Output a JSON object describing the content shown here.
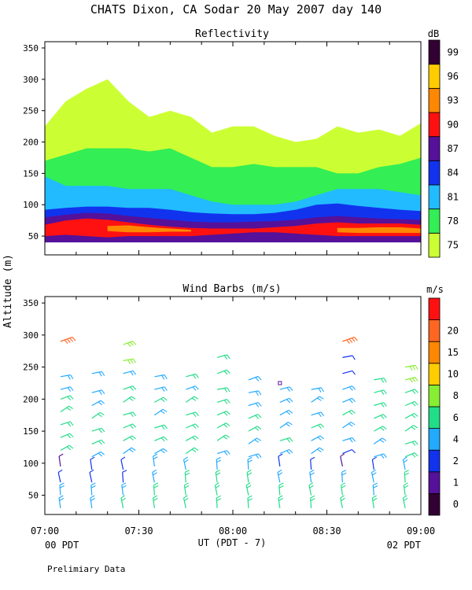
{
  "header": {
    "title": "CHATS Dixon, CA  Sodar  20 May 2007  day 140"
  },
  "shared": {
    "ylabel": "Altitude (m)",
    "xlabel": "UT  (PDT - 7)",
    "x_ticks": [
      "07:00",
      "07:30",
      "08:00",
      "08:30",
      "09:00"
    ],
    "x_sub_left": "00 PDT",
    "x_sub_right": "02 PDT",
    "footer": "Prelimiary Data"
  },
  "chart_data": [
    {
      "type": "heatmap",
      "title": "Reflectivity",
      "x_range": [
        "07:00",
        "09:00"
      ],
      "y_ticks": [
        50,
        100,
        150,
        200,
        250,
        300,
        350
      ],
      "ylim": [
        20,
        360
      ],
      "colorbar": {
        "unit": "dB",
        "labels": [
          "75",
          "78",
          "81",
          "84",
          "87",
          "90",
          "93",
          "96",
          "99"
        ],
        "colors": [
          "#ccff33",
          "#33ee55",
          "#22bbff",
          "#1133ee",
          "#551199",
          "#ff1111",
          "#ff8800",
          "#ffcc00",
          "#330033"
        ]
      },
      "bands": [
        {
          "level": "75",
          "top": [
            225,
            265,
            285,
            300,
            265,
            240,
            250,
            240,
            215,
            225,
            225,
            210,
            200,
            205,
            225,
            215,
            220,
            210,
            230
          ],
          "bottom": [
            45,
            45,
            45,
            45,
            45,
            45,
            45,
            45,
            45,
            45,
            45,
            45,
            45,
            45,
            45,
            45,
            45,
            45,
            45
          ]
        },
        {
          "level": "78",
          "top": [
            170,
            180,
            190,
            190,
            190,
            185,
            190,
            175,
            160,
            160,
            165,
            160,
            160,
            160,
            150,
            150,
            160,
            165,
            175
          ],
          "bottom": [
            45,
            45,
            45,
            45,
            45,
            45,
            45,
            45,
            45,
            45,
            45,
            45,
            45,
            45,
            45,
            45,
            45,
            45,
            45
          ]
        },
        {
          "level": "81",
          "top": [
            145,
            130,
            130,
            130,
            125,
            125,
            125,
            115,
            105,
            100,
            100,
            100,
            105,
            115,
            125,
            125,
            125,
            120,
            115
          ],
          "bottom": [
            45,
            45,
            45,
            45,
            45,
            45,
            45,
            45,
            45,
            45,
            45,
            45,
            45,
            45,
            45,
            45,
            45,
            45,
            45
          ]
        },
        {
          "level": "84",
          "top": [
            92,
            95,
            97,
            97,
            95,
            95,
            92,
            88,
            86,
            85,
            85,
            87,
            92,
            100,
            102,
            98,
            95,
            92,
            90
          ],
          "bottom": [
            45,
            45,
            45,
            45,
            45,
            45,
            45,
            45,
            45,
            45,
            45,
            45,
            45,
            45,
            45,
            45,
            45,
            45,
            45
          ]
        },
        {
          "level": "87",
          "top": [
            80,
            84,
            87,
            86,
            82,
            79,
            76,
            73,
            72,
            72,
            73,
            74,
            76,
            80,
            82,
            80,
            78,
            77,
            76
          ],
          "bottom": [
            40,
            40,
            40,
            40,
            40,
            40,
            40,
            40,
            40,
            40,
            40,
            40,
            40,
            40,
            40,
            40,
            40,
            40,
            40
          ]
        },
        {
          "level": "90",
          "top": [
            68,
            75,
            78,
            76,
            72,
            68,
            65,
            63,
            62,
            62,
            62,
            64,
            66,
            70,
            72,
            70,
            70,
            70,
            68
          ],
          "bottom": [
            50,
            52,
            50,
            48,
            50,
            50,
            50,
            50,
            52,
            54,
            56,
            56,
            54,
            52,
            50,
            50,
            50,
            50,
            50
          ]
        },
        {
          "level": "93",
          "top": [
            0,
            0,
            0,
            66,
            67,
            64,
            62,
            60,
            0,
            0,
            0,
            0,
            0,
            0,
            63,
            63,
            64,
            64,
            62
          ],
          "bottom": [
            0,
            0,
            0,
            58,
            56,
            56,
            57,
            57,
            0,
            0,
            0,
            0,
            0,
            0,
            56,
            55,
            55,
            55,
            55
          ]
        }
      ]
    },
    {
      "type": "scatter",
      "title": "Wind Barbs (m/s)",
      "x_range": [
        "07:00",
        "09:00"
      ],
      "y_ticks": [
        50,
        100,
        150,
        200,
        250,
        300,
        350
      ],
      "ylim": [
        20,
        360
      ],
      "colorbar": {
        "unit": "m/s",
        "labels": [
          "0",
          "1",
          "2",
          "4",
          "6",
          "8",
          "10",
          "15",
          "20"
        ],
        "colors": [
          "#330033",
          "#551199",
          "#1133ee",
          "#22aaff",
          "#22dd88",
          "#88ee33",
          "#ffcc00",
          "#ff8800",
          "#ff6622",
          "#ff1111"
        ]
      },
      "profiles": [
        {
          "time": "07:05",
          "heights": [
            30,
            50,
            70,
            95,
            120,
            140,
            160,
            180,
            200,
            215,
            235,
            290
          ],
          "speeds": [
            3.2,
            3.0,
            2.6,
            0.8,
            3.8,
            4.4,
            3.8,
            4.2,
            3.8,
            3.2,
            3.0,
            15.5
          ]
        },
        {
          "time": "07:15",
          "heights": [
            30,
            50,
            70,
            90,
            110,
            130,
            150,
            170,
            190,
            210,
            240
          ],
          "speeds": [
            3.4,
            3.0,
            2.6,
            2.2,
            3.0,
            3.6,
            4.2,
            3.6,
            3.4,
            3.2,
            3.0
          ]
        },
        {
          "time": "07:25",
          "heights": [
            30,
            50,
            70,
            90,
            115,
            135,
            155,
            175,
            195,
            215,
            240,
            260,
            285
          ],
          "speeds": [
            3.6,
            3.2,
            2.8,
            2.4,
            3.4,
            4.2,
            4.0,
            4.2,
            4.0,
            3.6,
            3.4,
            5.6,
            5.2
          ]
        },
        {
          "time": "07:35",
          "heights": [
            30,
            50,
            70,
            95,
            115,
            135,
            155,
            175,
            195,
            215,
            235
          ],
          "speeds": [
            3.8,
            3.6,
            3.2,
            3.0,
            3.2,
            3.6,
            3.8,
            3.4,
            3.6,
            3.2,
            3.0
          ]
        },
        {
          "time": "07:45",
          "heights": [
            30,
            50,
            70,
            90,
            115,
            135,
            155,
            175,
            195,
            215,
            235
          ],
          "speeds": [
            4.4,
            4.0,
            3.6,
            3.2,
            3.6,
            4.0,
            4.4,
            3.6,
            3.8,
            3.4,
            3.6
          ]
        },
        {
          "time": "07:55",
          "heights": [
            30,
            50,
            70,
            90,
            115,
            135,
            155,
            175,
            195,
            215,
            240,
            265
          ],
          "speeds": [
            4.6,
            4.2,
            3.8,
            3.2,
            3.4,
            3.8,
            4.6,
            4.0,
            4.2,
            4.4,
            4.0,
            4.6
          ]
        },
        {
          "time": "08:05",
          "heights": [
            30,
            50,
            70,
            90,
            110,
            130,
            150,
            170,
            190,
            210,
            230
          ],
          "speeds": [
            4.8,
            4.2,
            3.6,
            3.0,
            3.2,
            3.4,
            4.0,
            3.6,
            3.4,
            3.2,
            3.0
          ]
        },
        {
          "time": "08:15",
          "heights": [
            30,
            50,
            70,
            95,
            115,
            135,
            155,
            175,
            195,
            215
          ],
          "speeds": [
            4.6,
            4.0,
            3.4,
            2.8,
            3.0,
            3.6,
            3.4,
            3.4,
            3.2,
            3.0
          ]
        },
        {
          "time": "08:25",
          "heights": [
            30,
            50,
            70,
            90,
            115,
            135,
            155,
            175,
            195,
            215
          ],
          "speeds": [
            4.4,
            4.0,
            3.4,
            2.8,
            3.0,
            3.4,
            3.6,
            3.4,
            3.2,
            3.2
          ]
        },
        {
          "time": "08:35",
          "heights": [
            30,
            50,
            70,
            95,
            115,
            135,
            155,
            175,
            195,
            215,
            240,
            265,
            290
          ],
          "speeds": [
            4.0,
            3.6,
            3.0,
            0.8,
            2.6,
            3.2,
            3.4,
            3.6,
            3.2,
            3.0,
            2.8,
            2.8,
            15.5
          ]
        },
        {
          "time": "08:45",
          "heights": [
            30,
            50,
            70,
            90,
            110,
            130,
            150,
            170,
            190,
            210,
            230
          ],
          "speeds": [
            3.8,
            3.4,
            3.0,
            2.6,
            3.0,
            3.4,
            4.0,
            3.8,
            4.0,
            3.8,
            3.6
          ]
        },
        {
          "time": "08:55",
          "heights": [
            30,
            50,
            70,
            90,
            110,
            130,
            150,
            170,
            190,
            210,
            230,
            250
          ],
          "speeds": [
            4.6,
            4.2,
            3.8,
            3.4,
            3.6,
            3.8,
            4.2,
            4.4,
            4.6,
            4.8,
            5.0,
            6.2
          ]
        }
      ]
    }
  ]
}
